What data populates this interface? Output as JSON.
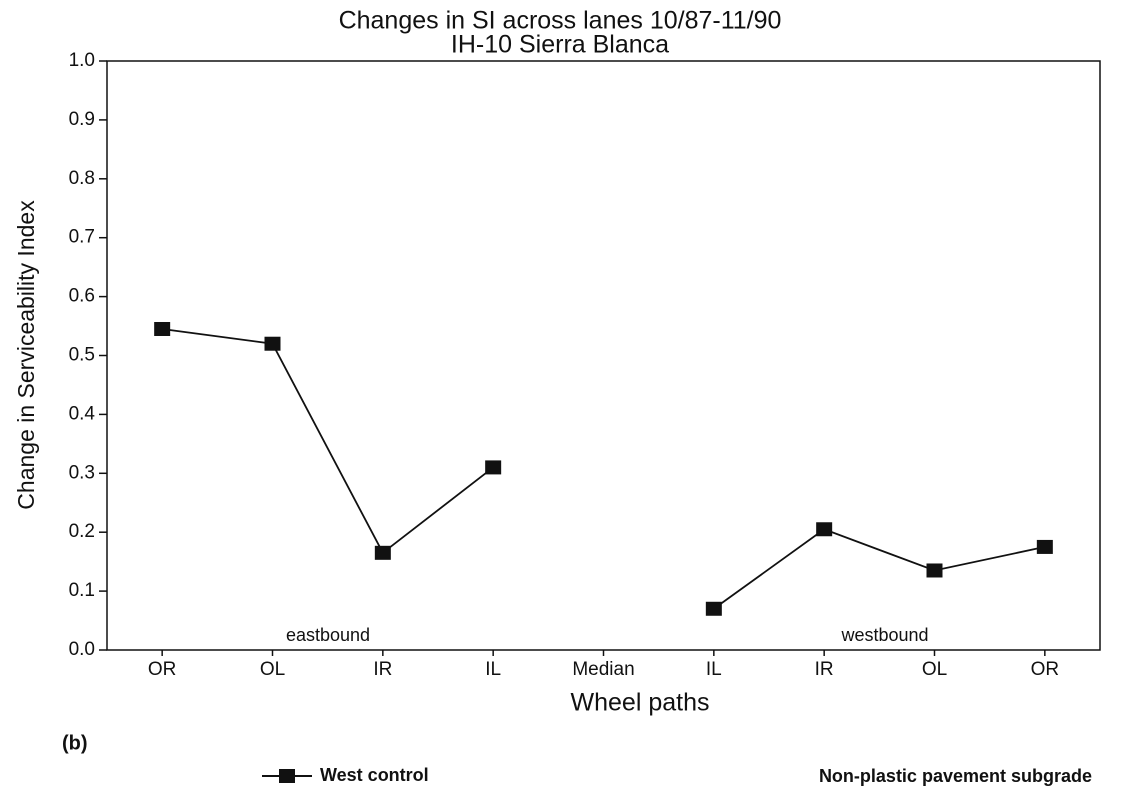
{
  "chart_data": {
    "type": "line",
    "title": [
      "Changes in SI across lanes 10/87-11/90",
      "IH-10 Sierra Blanca"
    ],
    "x_label": "Wheel paths",
    "y_label": "Change in Serviceability Index",
    "categories": [
      "OR",
      "OL",
      "IR",
      "IL",
      "Median",
      "IL",
      "IR",
      "OL",
      "OR"
    ],
    "series": [
      {
        "name": "West control",
        "color": "#111111",
        "values": [
          0.545,
          0.52,
          0.165,
          0.31,
          null,
          0.07,
          0.205,
          0.135,
          0.175
        ]
      }
    ],
    "ylim": [
      0,
      1
    ],
    "yticks": [
      {
        "value": 0,
        "label": "0.0"
      },
      0.1,
      0.2,
      0.3,
      0.4,
      0.5,
      0.6,
      0.7,
      0.8,
      0.9,
      {
        "value": 1,
        "label": "1.0"
      }
    ],
    "grid": false,
    "annotations": [
      "eastbound",
      "westbound",
      "(b)",
      "Non-plastic pavement subgrade"
    ]
  }
}
